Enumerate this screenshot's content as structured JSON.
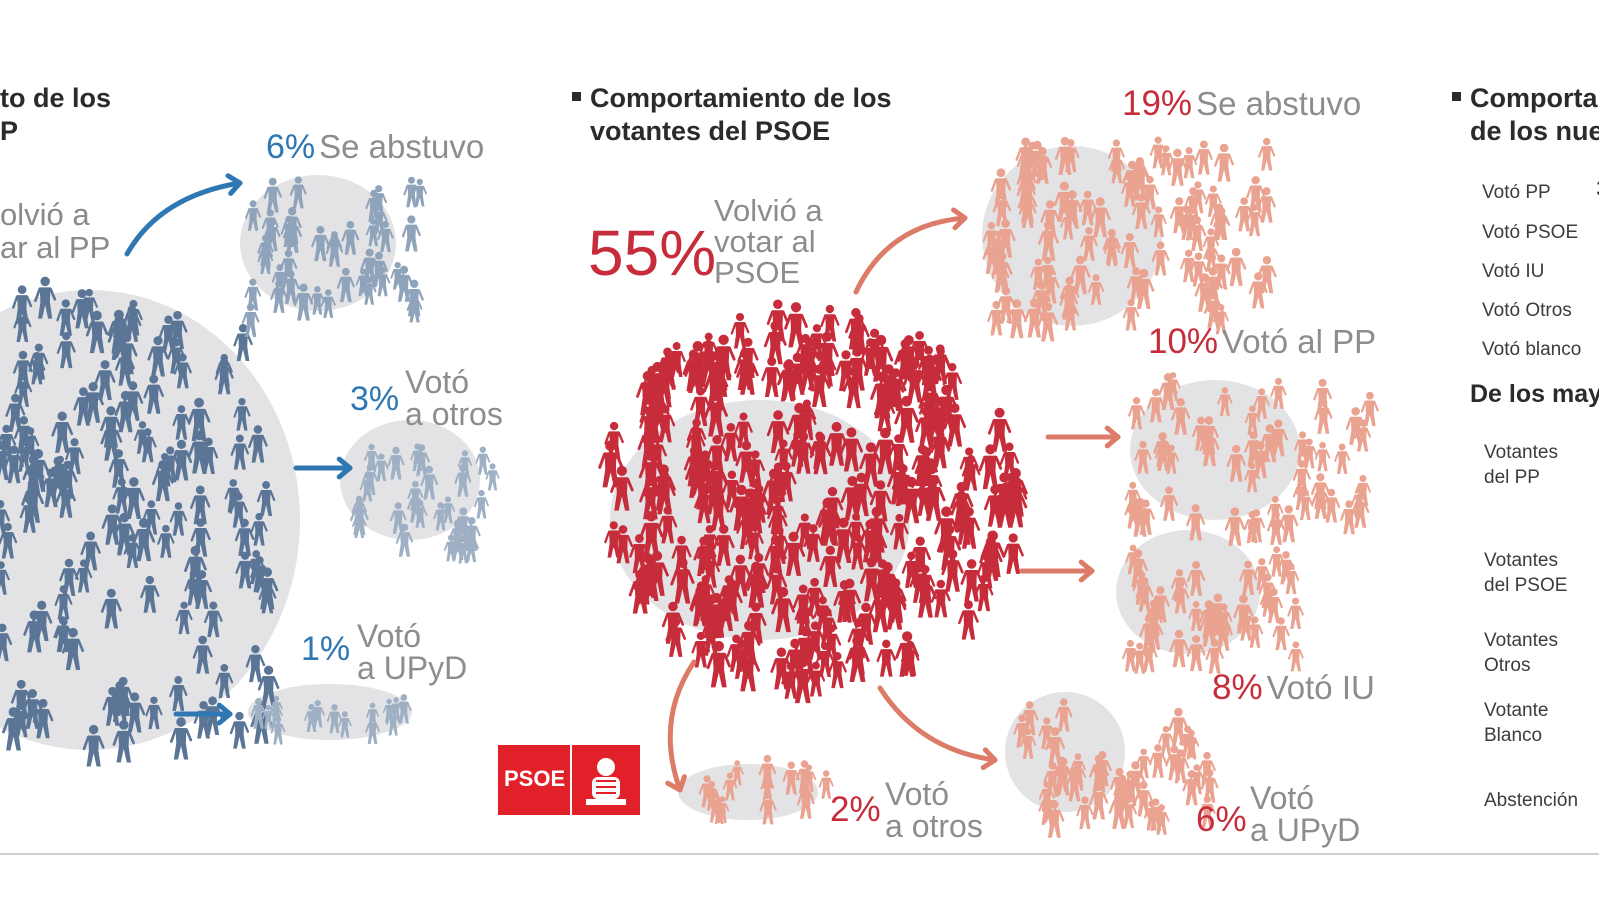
{
  "colors": {
    "pp_blue": "#2e77b3",
    "pp_crowd": "#5a7596",
    "psoe_red": "#c72c3b",
    "psoe_crowd": "#e9a390",
    "arrow_red": "#dc7b68",
    "bubble_grey": "#e3e3e6"
  },
  "panels": {
    "pp": {
      "title_line1": "to de los",
      "title_line2": "P",
      "main_line1": "olvió a",
      "main_line2": "ar al PP"
    },
    "psoe": {
      "title_line1": "Comportamiento de los",
      "title_line2": "votantes del PSOE",
      "main_pct": "55%",
      "main_line1": "Volvió a",
      "main_line2": "votar al",
      "main_line3": "PSOE",
      "logo_text": "PSOE"
    },
    "right": {
      "title_line1": "Comporta",
      "title_line2": "de los nue",
      "vote_rows": [
        "Votó PP",
        "Votó PSOE",
        "Votó IU",
        "Votó Otros",
        "Votó blanco"
      ],
      "partial_value": "3",
      "section_title": "De los may",
      "groups": [
        {
          "line1": "Votantes",
          "line2": "del PP"
        },
        {
          "line1": "Votantes",
          "line2": "del PSOE"
        },
        {
          "line1": "Votantes",
          "line2": "Otros"
        },
        {
          "line1": "Votante",
          "line2": "Blanco"
        },
        {
          "line1": "Abstención",
          "line2": ""
        }
      ]
    }
  },
  "chart_data": [
    {
      "type": "flow",
      "title": "",
      "source_group": "Votantes del PP",
      "categories": [
        "Volvió a votar al PP",
        "Se abstuvo",
        "Votó a otros",
        "Votó a UPyD"
      ],
      "values": [
        null,
        6,
        3,
        1
      ],
      "unit": "%",
      "flows": [
        {
          "pct": "6%",
          "label_line1": "Se abstuvo",
          "label_line2": ""
        },
        {
          "pct": "3%",
          "label_line1": "Votó",
          "label_line2": "a otros"
        },
        {
          "pct": "1%",
          "label_line1": "Votó",
          "label_line2": "a UPyD"
        }
      ]
    },
    {
      "type": "flow",
      "title": "Comportamiento de los votantes del PSOE",
      "source_group": "Votantes del PSOE",
      "categories": [
        "Volvió a votar al PSOE",
        "Se abstuvo",
        "Votó al PP",
        "Votó IU",
        "Votó a otros",
        "Votó a UPyD"
      ],
      "values": [
        55,
        19,
        10,
        8,
        2,
        6
      ],
      "unit": "%",
      "flows": [
        {
          "pct": "19%",
          "label_line1": "Se abstuvo",
          "label_line2": ""
        },
        {
          "pct": "10%",
          "label_line1": "Votó al PP",
          "label_line2": ""
        },
        {
          "pct": "8%",
          "label_line1": "Votó IU",
          "label_line2": ""
        },
        {
          "pct": "2%",
          "label_line1": "Votó",
          "label_line2": "a otros"
        },
        {
          "pct": "6%",
          "label_line1": "Votó",
          "label_line2": "a UPyD"
        }
      ]
    }
  ]
}
